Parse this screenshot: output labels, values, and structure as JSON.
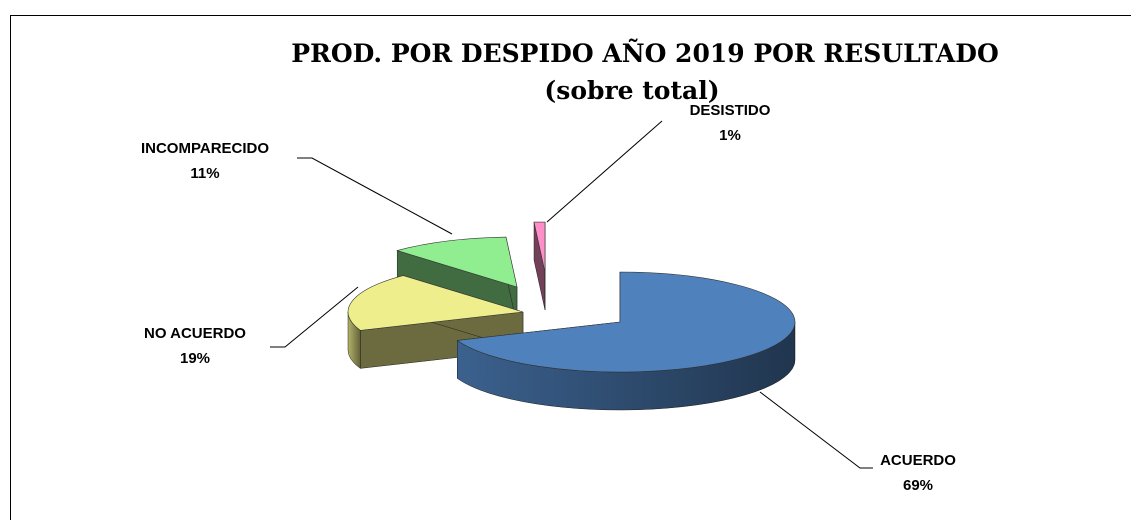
{
  "chart_data": {
    "type": "pie3d",
    "title": "PROD. POR DESPIDO AÑO 2019 POR RESULTADO",
    "subtitle": "(sobre total)",
    "categories": [
      "ACUERDO",
      "NO ACUERDO",
      "INCOMPARECIDO",
      "DESISTIDO"
    ],
    "values": [
      69,
      19,
      11,
      1
    ],
    "value_labels": [
      "69%",
      "19%",
      "11%",
      "1%"
    ],
    "colors": [
      "#4f81bd",
      "#eeee8c",
      "#90ee90",
      "#ff8fc8"
    ]
  }
}
